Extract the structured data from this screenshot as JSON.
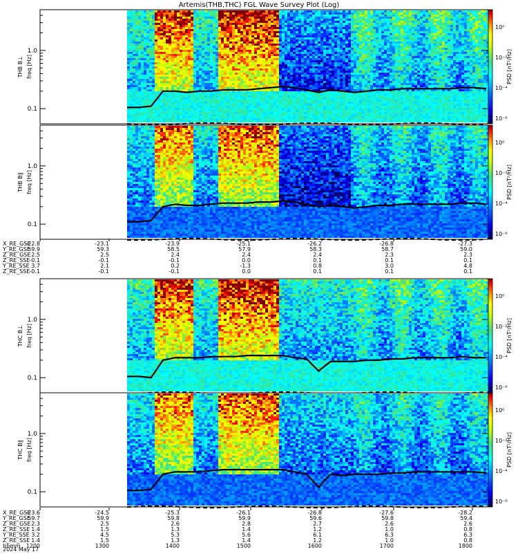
{
  "chart_data": {
    "type": "heatmap",
    "title": "Artemis(THB,THC) FGL Wave Survey Plot (Log)",
    "date": "2024 May 17",
    "y_scale": "log",
    "y_tick_labels": [
      "1.0",
      "0.1"
    ],
    "colorbar": {
      "label": "PSD [nT²/Hz]",
      "tick_labels": [
        "10⁰",
        "10⁻²",
        "10⁻⁴",
        "10⁻⁶"
      ],
      "colors": [
        "#000060",
        "#0000ff",
        "#0090ff",
        "#00ffff",
        "#40e080",
        "#c8ff00",
        "#ffff00",
        "#ff8000",
        "#ff0000",
        "#800000"
      ]
    },
    "panels": [
      {
        "ylabel": "THB B⊥",
        "yunit": "freq [Hz]",
        "seed": 11,
        "solid_line": [
          0.105,
          0.105,
          0.11,
          0.2,
          0.2,
          0.19,
          0.2,
          0.2,
          0.21,
          0.21,
          0.21,
          0.22,
          0.23,
          0.24,
          0.23,
          0.21,
          0.19,
          0.21,
          0.2,
          0.19,
          0.2,
          0.21,
          0.21,
          0.22,
          0.22,
          0.22,
          0.22,
          0.22,
          0.23,
          0.23,
          0.22
        ]
      },
      {
        "ylabel": "THB B∥",
        "yunit": "freq [Hz]",
        "seed": 23,
        "solid_line": [
          0.11,
          0.11,
          0.115,
          0.2,
          0.22,
          0.21,
          0.21,
          0.22,
          0.23,
          0.23,
          0.23,
          0.24,
          0.24,
          0.25,
          0.24,
          0.22,
          0.2,
          0.21,
          0.2,
          0.19,
          0.2,
          0.21,
          0.21,
          0.22,
          0.22,
          0.22,
          0.22,
          0.22,
          0.23,
          0.23,
          0.22
        ]
      },
      {
        "ylabel": "THC B⊥",
        "yunit": "freq [Hz]",
        "seed": 37,
        "solid_line": [
          0.105,
          0.105,
          0.1,
          0.2,
          0.22,
          0.22,
          0.22,
          0.23,
          0.23,
          0.23,
          0.24,
          0.24,
          0.24,
          0.24,
          0.22,
          0.21,
          0.13,
          0.19,
          0.19,
          0.19,
          0.2,
          0.2,
          0.21,
          0.21,
          0.22,
          0.22,
          0.22,
          0.22,
          0.23,
          0.22,
          0.22
        ]
      },
      {
        "ylabel": "THC B∥",
        "yunit": "freq [Hz]",
        "seed": 53,
        "solid_line": [
          0.105,
          0.105,
          0.11,
          0.2,
          0.22,
          0.22,
          0.22,
          0.23,
          0.24,
          0.24,
          0.24,
          0.24,
          0.24,
          0.24,
          0.22,
          0.2,
          0.12,
          0.2,
          0.19,
          0.2,
          0.2,
          0.2,
          0.21,
          0.21,
          0.22,
          0.22,
          0.22,
          0.22,
          0.22,
          0.22,
          0.21
        ]
      }
    ],
    "ephemeris_thb": {
      "labels": [
        "X_RE_GSE",
        "Y_RE_GSE",
        "Z_RE_GSE",
        "Z_RE_SSE",
        "Y_RE_SSE",
        "Z_RE_SSE"
      ],
      "columns": [
        [
          "-22.8",
          "59.9",
          "2.5",
          "-0.1",
          "3.7",
          "-0.1"
        ],
        [
          "-23.1",
          "59.3",
          "2.5",
          "-0.1",
          "2.1",
          "-0.1"
        ],
        [
          "-23.9",
          "58.5",
          "2.4",
          "-0.1",
          "0.2",
          "-0.1"
        ],
        [
          "-25.1",
          "57.9",
          "2.4",
          "0.0",
          "-1.3",
          "0.0"
        ],
        [
          "-26.2",
          "58.3",
          "2.4",
          "0.1",
          "0.8",
          "0.1"
        ],
        [
          "-26.8",
          "58.7",
          "2.3",
          "0.1",
          "3.0",
          "0.1"
        ],
        [
          "-27.3",
          "59.0",
          "2.3",
          "0.1",
          "4.8",
          "0.1"
        ]
      ]
    },
    "ephemeris_thc": {
      "labels": [
        "X_RE_GSE",
        "Y_RE_GSE",
        "Z_RE_GSE",
        "Z_RE_SSE",
        "Y_RE_SSE",
        "Z_RE_SSE",
        "hhmm"
      ],
      "columns": [
        [
          "-23.6",
          "59.7",
          "2.3",
          "1.4",
          "3.2",
          "1.4",
          "1200"
        ],
        [
          "-24.5",
          "59.9",
          "2.5",
          "1.5",
          "4.5",
          "1.5",
          "1300"
        ],
        [
          "-25.3",
          "59.8",
          "2.6",
          "1.3",
          "5.3",
          "1.3",
          "1400"
        ],
        [
          "-26.1",
          "59.9",
          "2.8",
          "1.4",
          "5.6",
          "1.4",
          "1500"
        ],
        [
          "-26.8",
          "59.6",
          "2.7",
          "1.2",
          "6.1",
          "1.2",
          "1600"
        ],
        [
          "-27.6",
          "59.8",
          "2.6",
          "1.0",
          "6.3",
          "1.0",
          "1700"
        ],
        [
          "-28.2",
          "59.4",
          "2.6",
          "0.8",
          "6.3",
          "0.8",
          "1800"
        ]
      ]
    }
  }
}
